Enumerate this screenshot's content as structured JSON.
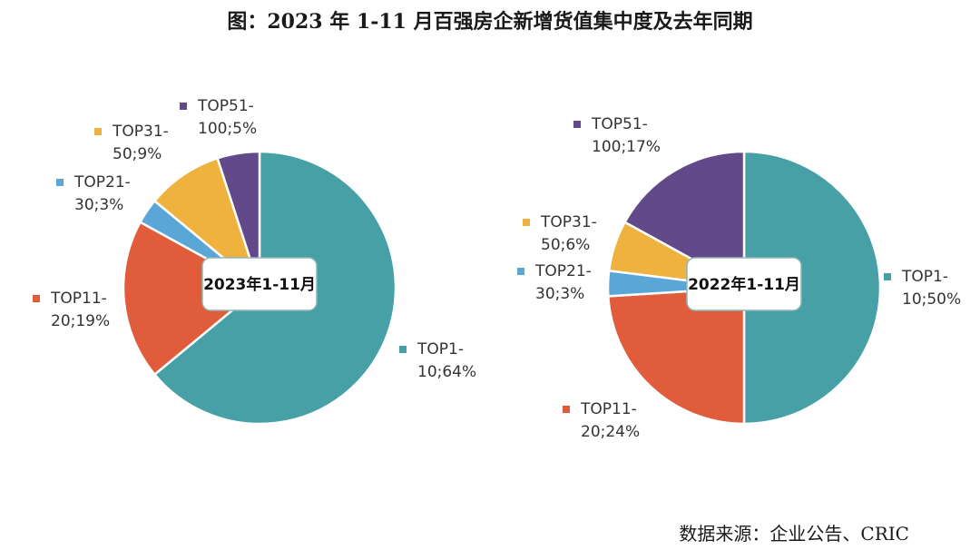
{
  "title": "图：2023 年 1-11 月百强房企新增货值集中度及去年同期",
  "source": "数据来源：企业公告、CRIC",
  "chart_data": [
    {
      "type": "pie",
      "center_label": "2023年1-11月",
      "slices": [
        {
          "label_line1": "TOP1-",
          "label_line2": "10;64%",
          "category": "TOP1-10",
          "value": 64,
          "color": "#46a0a6"
        },
        {
          "label_line1": "TOP11-",
          "label_line2": "20;19%",
          "category": "TOP11-20",
          "value": 19,
          "color": "#e05c3a"
        },
        {
          "label_line1": "TOP21-",
          "label_line2": "30;3%",
          "category": "TOP21-30",
          "value": 3,
          "color": "#5aa6d6"
        },
        {
          "label_line1": "TOP31-",
          "label_line2": "50;9%",
          "category": "TOP31-50",
          "value": 9,
          "color": "#efb23e"
        },
        {
          "label_line1": "TOP51-",
          "label_line2": "100;5%",
          "category": "TOP51-100",
          "value": 5,
          "color": "#62498a"
        }
      ]
    },
    {
      "type": "pie",
      "center_label": "2022年1-11月",
      "slices": [
        {
          "label_line1": "TOP1-",
          "label_line2": "10;50%",
          "category": "TOP1-10",
          "value": 50,
          "color": "#46a0a6"
        },
        {
          "label_line1": "TOP11-",
          "label_line2": "20;24%",
          "category": "TOP11-20",
          "value": 24,
          "color": "#e05c3a"
        },
        {
          "label_line1": "TOP21-",
          "label_line2": "30;3%",
          "category": "TOP21-30",
          "value": 3,
          "color": "#5aa6d6"
        },
        {
          "label_line1": "TOP31-",
          "label_line2": "50;6%",
          "category": "TOP31-50",
          "value": 6,
          "color": "#efb23e"
        },
        {
          "label_line1": "TOP51-",
          "label_line2": "100;17%",
          "category": "TOP51-100",
          "value": 17,
          "color": "#62498a"
        }
      ]
    }
  ]
}
